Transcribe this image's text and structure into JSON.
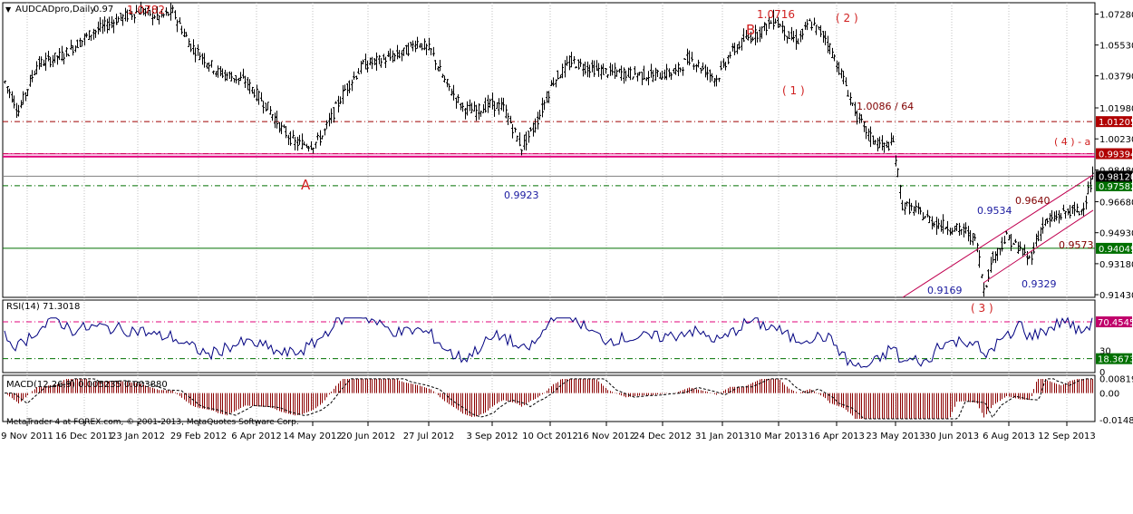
{
  "window": {
    "symbol_title": "AUDCADpro,Daily",
    "last_close_short": "0.97",
    "copyright": "MetaTrader 4 at FOREX.com, © 2001-2013, MetaQuotes Software Corp."
  },
  "colors": {
    "candle": "#000000",
    "grid": "#c0c0c0",
    "red_label": "#c00000",
    "blue_label": "#1a1aa0",
    "magenta": "#e0007a",
    "dark_red_line": "#a00000",
    "green_line": "#007000",
    "rsi_line": "#000080",
    "macd_hist": "#8b0000"
  },
  "chart_data": [
    {
      "type": "candlestick",
      "panel": "main",
      "title": "AUDCADpro,Daily",
      "y_range": [
        0.9128,
        1.0792
      ],
      "y_ticks": [
        "1.07280",
        "1.05530",
        "1.03790",
        "1.01980",
        "1.00230",
        "0.98480",
        "0.96680",
        "0.94930",
        "0.93180",
        "0.91430"
      ],
      "x_ticks": [
        "9 Nov 2011",
        "16 Dec 2011",
        "23 Jan 2012",
        "29 Feb 2012",
        "6 Apr 2012",
        "14 May 2012",
        "20 Jun 2012",
        "27 Jul 2012",
        "3 Sep 2012",
        "10 Oct 2012",
        "16 Nov 2012",
        "24 Dec 2012",
        "31 Jan 2013",
        "10 Mar 2013",
        "16 Apr 2013",
        "23 May 2013",
        "30 Jun 2013",
        "6 Aug 2013",
        "12 Sep 2013"
      ],
      "close_path": [
        [
          0,
          1.04
        ],
        [
          20,
          1.018
        ],
        [
          40,
          1.044
        ],
        [
          70,
          1.05
        ],
        [
          100,
          1.062
        ],
        [
          130,
          1.07
        ],
        [
          155,
          1.075
        ],
        [
          175,
          1.071
        ],
        [
          190,
          1.074
        ],
        [
          210,
          1.055
        ],
        [
          240,
          1.04
        ],
        [
          270,
          1.035
        ],
        [
          295,
          1.02
        ],
        [
          310,
          1.008
        ],
        [
          325,
          1.0
        ],
        [
          345,
          0.999
        ],
        [
          355,
          1.004
        ],
        [
          380,
          1.03
        ],
        [
          400,
          1.044
        ],
        [
          430,
          1.048
        ],
        [
          445,
          1.051
        ],
        [
          460,
          1.057
        ],
        [
          475,
          1.052
        ],
        [
          490,
          1.035
        ],
        [
          510,
          1.02
        ],
        [
          525,
          1.018
        ],
        [
          540,
          1.022
        ],
        [
          555,
          1.02
        ],
        [
          575,
          0.9975
        ],
        [
          590,
          1.01
        ],
        [
          610,
          1.035
        ],
        [
          630,
          1.046
        ],
        [
          645,
          1.043
        ],
        [
          670,
          1.04
        ],
        [
          700,
          1.039
        ],
        [
          720,
          1.038
        ],
        [
          745,
          1.04
        ],
        [
          760,
          1.048
        ],
        [
          775,
          1.042
        ],
        [
          790,
          1.036
        ],
        [
          805,
          1.05
        ],
        [
          820,
          1.058
        ],
        [
          835,
          1.062
        ],
        [
          855,
          1.07
        ],
        [
          870,
          1.06
        ],
        [
          880,
          1.058
        ],
        [
          893,
          1.068
        ],
        [
          910,
          1.06
        ],
        [
          930,
          1.036
        ],
        [
          945,
          1.015
        ],
        [
          960,
          1.003
        ],
        [
          975,
          0.998
        ],
        [
          985,
          1.0
        ],
        [
          995,
          0.965
        ],
        [
          1010,
          0.962
        ],
        [
          1030,
          0.955
        ],
        [
          1050,
          0.952
        ],
        [
          1065,
          0.95
        ],
        [
          1077,
          0.944
        ],
        [
          1085,
          0.9175
        ],
        [
          1095,
          0.935
        ],
        [
          1110,
          0.947
        ],
        [
          1125,
          0.94
        ],
        [
          1135,
          0.934
        ],
        [
          1150,
          0.954
        ],
        [
          1165,
          0.958
        ],
        [
          1180,
          0.962
        ],
        [
          1192,
          0.961
        ],
        [
          1205,
          0.98
        ]
      ],
      "horizontal_levels": [
        {
          "price": 1.01205,
          "label": "1.01205",
          "style": "dash-dot",
          "color": "dark-red"
        },
        {
          "price": 0.99394,
          "label": "0.99394",
          "style": "dash-dot",
          "color": "dark-red"
        },
        {
          "price": 0.9923,
          "label": "0.9923",
          "style": "solid",
          "color": "magenta"
        },
        {
          "price": 0.97582,
          "label": "0.97582",
          "style": "dash-dot",
          "color": "green"
        },
        {
          "price": 0.94049,
          "label": "0.94049",
          "style": "solid",
          "color": "green"
        },
        {
          "price": 0.9812,
          "label": "0.98120",
          "style": "current-price",
          "color": "black"
        }
      ],
      "channel_lines": [
        {
          "from": [
            "1 Jun 2013",
            0.9128
          ],
          "to": [
            "26 Sep 2013",
            0.982
          ]
        },
        {
          "from": [
            "30 Jul 2013",
            0.921
          ],
          "to": [
            "26 Sep 2013",
            0.962
          ]
        }
      ],
      "annotations": [
        {
          "text": "1.0782",
          "color": "red"
        },
        {
          "text": "1.0716",
          "color": "red"
        },
        {
          "text": "B",
          "color": "red"
        },
        {
          "text": "( 2 )",
          "color": "red"
        },
        {
          "text": "( 1 )",
          "color": "red"
        },
        {
          "text": "1.0086 / 64",
          "color": "dark-red"
        },
        {
          "text": "( 4 ) - a",
          "color": "red"
        },
        {
          "text": "A",
          "color": "red"
        },
        {
          "text": "0.9923",
          "color": "blue"
        },
        {
          "text": "0.9534",
          "color": "blue"
        },
        {
          "text": "0.9640",
          "color": "dark-red"
        },
        {
          "text": "0.9573",
          "color": "dark-red"
        },
        {
          "text": "0.9169",
          "color": "blue"
        },
        {
          "text": "0.9329",
          "color": "blue"
        },
        {
          "text": "( 3 )",
          "color": "red"
        }
      ]
    },
    {
      "type": "line",
      "panel": "rsi",
      "title": "RSI(14) 71.3018",
      "y_range": [
        0,
        100
      ],
      "y_ticks": [
        "70.45455",
        "30",
        "18.36735",
        "0"
      ],
      "levels": [
        70.45455,
        18.36735
      ]
    },
    {
      "type": "bar",
      "panel": "macd",
      "title": "MACD(12,26,9) 0.005235 0.003880",
      "y_ticks": [
        "0.008195",
        "0.00",
        "-0.014872"
      ],
      "y_range": [
        -0.0155,
        0.0095
      ]
    }
  ]
}
